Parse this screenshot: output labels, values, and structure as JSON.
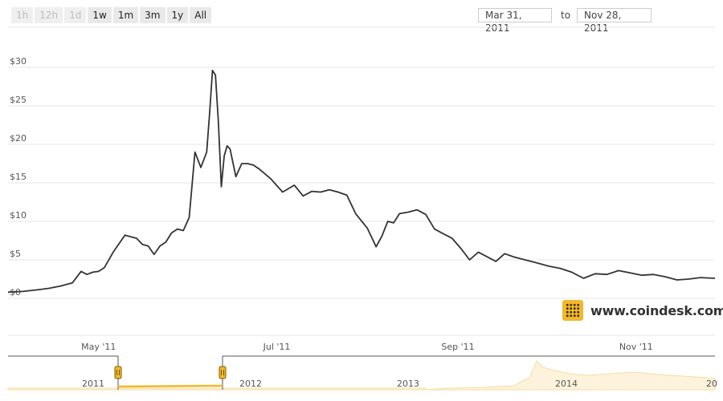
{
  "range_buttons": [
    {
      "label": "1h",
      "enabled": false
    },
    {
      "label": "12h",
      "enabled": false
    },
    {
      "label": "1d",
      "enabled": false
    },
    {
      "label": "1w",
      "enabled": true
    },
    {
      "label": "1m",
      "enabled": true
    },
    {
      "label": "3m",
      "enabled": true
    },
    {
      "label": "1y",
      "enabled": true
    },
    {
      "label": "All",
      "enabled": true
    }
  ],
  "date_range": {
    "from": "Mar 31, 2011",
    "to_label": "to",
    "to": "Nov 28, 2011"
  },
  "brand": {
    "text": "www.coindesk.com",
    "icon": "coindesk-logo-icon",
    "color": "#f1b82d"
  },
  "chart_data": {
    "type": "line",
    "title": "",
    "xlabel": "",
    "ylabel": "",
    "y_ticks": [
      "$0",
      "$5",
      "$10",
      "$15",
      "$20",
      "$25",
      "$30"
    ],
    "ylim": [
      0,
      30
    ],
    "xlim": [
      "2011-03-31",
      "2011-11-28"
    ],
    "x_ticks": [
      {
        "date": "2011-05-01",
        "label": "May '11"
      },
      {
        "date": "2011-07-01",
        "label": "Jul '11"
      },
      {
        "date": "2011-09-01",
        "label": "Sep '11"
      },
      {
        "date": "2011-11-01",
        "label": "Nov '11"
      }
    ],
    "grid": true,
    "line_color": "#333333",
    "series": [
      {
        "name": "",
        "x": [
          "2011-03-31",
          "2011-04-05",
          "2011-04-10",
          "2011-04-14",
          "2011-04-18",
          "2011-04-22",
          "2011-04-25",
          "2011-04-27",
          "2011-04-29",
          "2011-05-01",
          "2011-05-03",
          "2011-05-06",
          "2011-05-10",
          "2011-05-14",
          "2011-05-16",
          "2011-05-18",
          "2011-05-20",
          "2011-05-22",
          "2011-05-24",
          "2011-05-26",
          "2011-05-28",
          "2011-05-30",
          "2011-06-01",
          "2011-06-03",
          "2011-06-05",
          "2011-06-07",
          "2011-06-08",
          "2011-06-09",
          "2011-06-10",
          "2011-06-11",
          "2011-06-12",
          "2011-06-13",
          "2011-06-14",
          "2011-06-15",
          "2011-06-17",
          "2011-06-19",
          "2011-06-21",
          "2011-06-23",
          "2011-06-25",
          "2011-06-29",
          "2011-07-03",
          "2011-07-07",
          "2011-07-10",
          "2011-07-13",
          "2011-07-16",
          "2011-07-19",
          "2011-07-22",
          "2011-07-25",
          "2011-07-28",
          "2011-08-01",
          "2011-08-04",
          "2011-08-06",
          "2011-08-08",
          "2011-08-10",
          "2011-08-12",
          "2011-08-15",
          "2011-08-18",
          "2011-08-21",
          "2011-08-24",
          "2011-08-27",
          "2011-08-30",
          "2011-09-02",
          "2011-09-05",
          "2011-09-08",
          "2011-09-11",
          "2011-09-14",
          "2011-09-17",
          "2011-09-20",
          "2011-09-24",
          "2011-09-28",
          "2011-10-02",
          "2011-10-06",
          "2011-10-10",
          "2011-10-14",
          "2011-10-18",
          "2011-10-22",
          "2011-10-26",
          "2011-10-30",
          "2011-11-03",
          "2011-11-07",
          "2011-11-11",
          "2011-11-15",
          "2011-11-19",
          "2011-11-23",
          "2011-11-28"
        ],
        "y": [
          0.8,
          0.9,
          1.1,
          1.3,
          1.6,
          2.0,
          3.5,
          3.1,
          3.4,
          3.5,
          4.0,
          6.0,
          8.2,
          7.8,
          7.0,
          6.8,
          5.7,
          6.8,
          7.3,
          8.5,
          9.0,
          8.8,
          10.5,
          19.0,
          17.0,
          19.0,
          24.0,
          29.6,
          29.0,
          23.0,
          14.5,
          18.5,
          19.8,
          19.4,
          15.8,
          17.5,
          17.5,
          17.3,
          16.8,
          15.5,
          13.8,
          14.7,
          13.3,
          13.9,
          13.8,
          14.1,
          13.8,
          13.4,
          11.0,
          9.1,
          6.7,
          8.1,
          10.0,
          9.8,
          11.0,
          11.2,
          11.5,
          10.9,
          9.0,
          8.4,
          7.8,
          6.5,
          5.0,
          6.0,
          5.4,
          4.8,
          5.8,
          5.4,
          5.0,
          4.6,
          4.2,
          3.9,
          3.4,
          2.6,
          3.2,
          3.1,
          3.6,
          3.3,
          3.0,
          3.1,
          2.8,
          2.4,
          2.5,
          2.7,
          2.6
        ]
      }
    ]
  },
  "navigator": {
    "year_labels": [
      "2011",
      "2012",
      "2013",
      "2014",
      "20"
    ],
    "accent": "#f1b82d"
  }
}
